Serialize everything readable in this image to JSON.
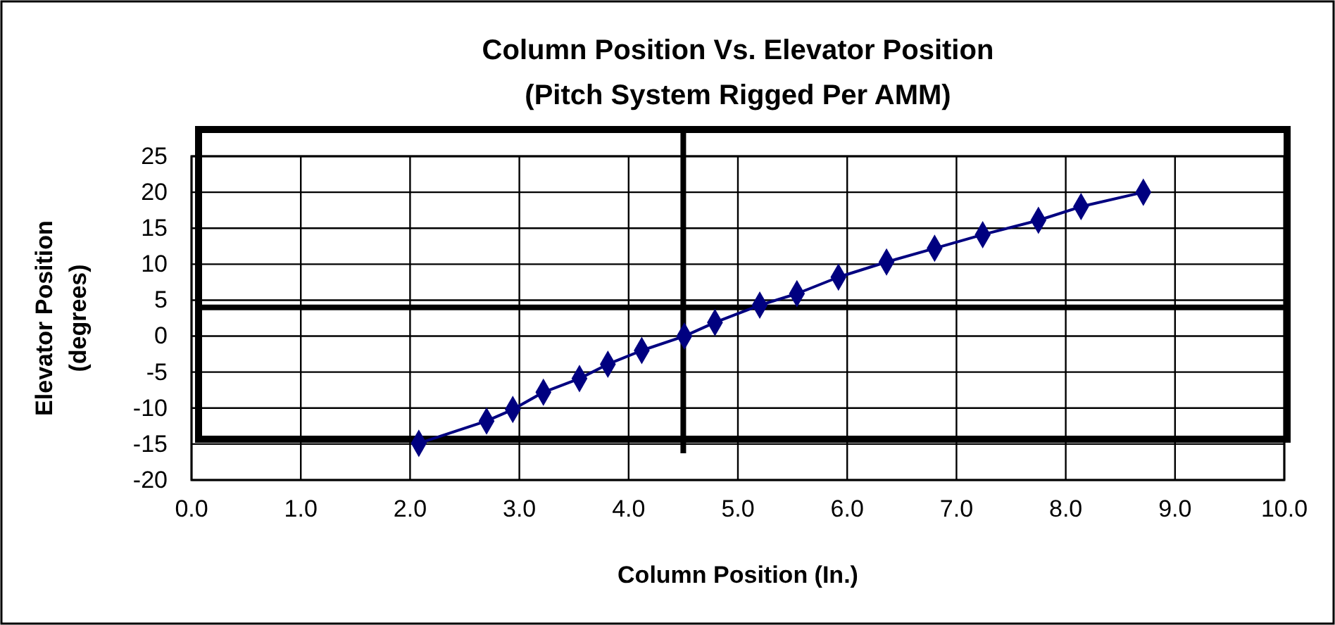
{
  "chart_data": {
    "type": "line",
    "title": "Column Position Vs. Elevator Position",
    "subtitle": "(Pitch System Rigged Per AMM)",
    "xlabel": "Column Position (In.)",
    "ylabel": "Elevator Position\n(degrees)",
    "x": [
      2.08,
      2.7,
      2.94,
      3.22,
      3.55,
      3.81,
      4.12,
      4.51,
      4.79,
      5.2,
      5.54,
      5.92,
      6.36,
      6.8,
      7.24,
      7.75,
      8.14,
      8.71
    ],
    "series": [
      {
        "color": "#000080",
        "values": [
          -14.9,
          -11.8,
          -10.2,
          -7.8,
          -5.9,
          -3.9,
          -2.0,
          0,
          1.9,
          4.3,
          5.9,
          8.2,
          10.3,
          12.2,
          14.1,
          16.1,
          18.0,
          20.0
        ]
      }
    ],
    "xlim": [
      0,
      10
    ],
    "xticks": [
      {
        "value": 0,
        "label": "0.0"
      },
      {
        "value": 1,
        "label": "1.0"
      },
      {
        "value": 2,
        "label": "2.0"
      },
      {
        "value": 3,
        "label": "3.0"
      },
      {
        "value": 4,
        "label": "4.0"
      },
      {
        "value": 5,
        "label": "5.0"
      },
      {
        "value": 6,
        "label": "6.0"
      },
      {
        "value": 7,
        "label": "7.0"
      },
      {
        "value": 8,
        "label": "8.0"
      },
      {
        "value": 9,
        "label": "9.0"
      },
      {
        "value": 10,
        "label": "10.0"
      }
    ],
    "ylim": [
      -20,
      25
    ],
    "yticks": [
      -20,
      -15,
      -10,
      -5,
      0,
      5,
      10,
      15,
      20,
      25
    ],
    "grid": true,
    "marker": "diamond",
    "line_style": "solid",
    "ref_lines": [
      {
        "axis": "x",
        "value": 4.5,
        "color": "#000000"
      },
      {
        "axis": "y",
        "value": 4,
        "color": "#000000"
      }
    ]
  }
}
